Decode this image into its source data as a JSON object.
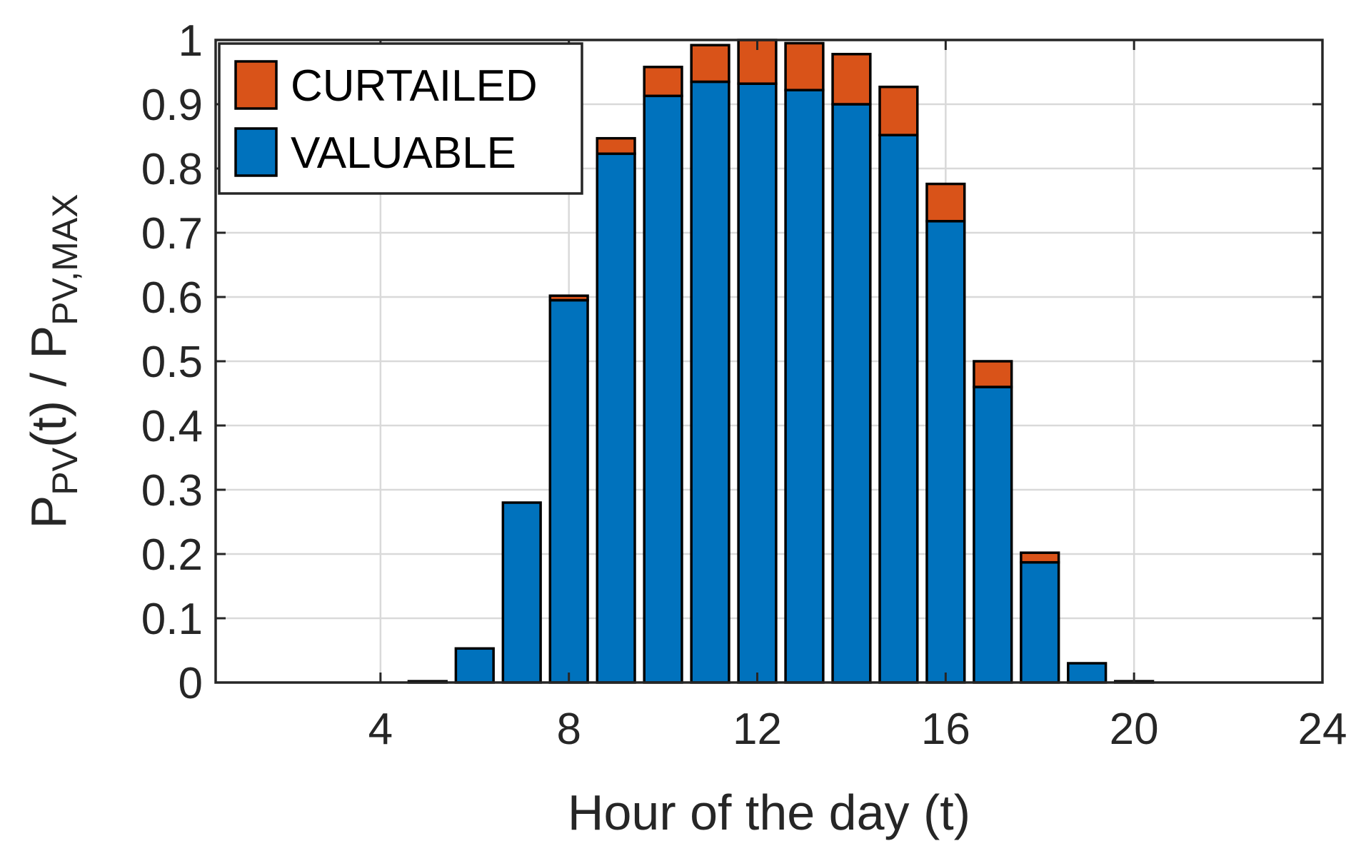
{
  "chart_data": {
    "type": "bar",
    "stacked": true,
    "x": [
      1,
      2,
      3,
      4,
      5,
      6,
      7,
      8,
      9,
      10,
      11,
      12,
      13,
      14,
      15,
      16,
      17,
      18,
      19,
      20,
      21,
      22,
      23
    ],
    "series": [
      {
        "name": "VALUABLE",
        "color": "#0072BD",
        "values": [
          0,
          0,
          0,
          0,
          0.002,
          0.053,
          0.28,
          0.595,
          0.823,
          0.913,
          0.935,
          0.932,
          0.922,
          0.9,
          0.852,
          0.718,
          0.46,
          0.187,
          0.03,
          0.002,
          0,
          0,
          0
        ]
      },
      {
        "name": "CURTAILED",
        "color": "#D95319",
        "values": [
          0,
          0,
          0,
          0,
          0,
          0,
          0,
          0.007,
          0.024,
          0.045,
          0.057,
          0.068,
          0.073,
          0.078,
          0.075,
          0.058,
          0.04,
          0.015,
          0,
          0,
          0,
          0,
          0
        ]
      }
    ],
    "xlabel": "Hour of the day (t)",
    "ylabel": {
      "parts": [
        {
          "text": "P",
          "shift": "base"
        },
        {
          "text": "PV",
          "shift": "sub"
        },
        {
          "text": "(t) / P",
          "shift": "base"
        },
        {
          "text": "PV,MAX",
          "shift": "sub"
        }
      ]
    },
    "xlim": [
      0.5,
      24
    ],
    "ylim": [
      0,
      1
    ],
    "xticks": [
      4,
      8,
      12,
      16,
      20,
      24
    ],
    "yticks": [
      0,
      0.1,
      0.2,
      0.3,
      0.4,
      0.5,
      0.6,
      0.7,
      0.8,
      0.9,
      1
    ],
    "ytick_labels": [
      "0",
      "0.1",
      "0.2",
      "0.3",
      "0.4",
      "0.5",
      "0.6",
      "0.7",
      "0.8",
      "0.9",
      "1"
    ],
    "grid": true,
    "legend": {
      "placement": "top-left",
      "entries": [
        "CURTAILED",
        "VALUABLE"
      ]
    }
  }
}
